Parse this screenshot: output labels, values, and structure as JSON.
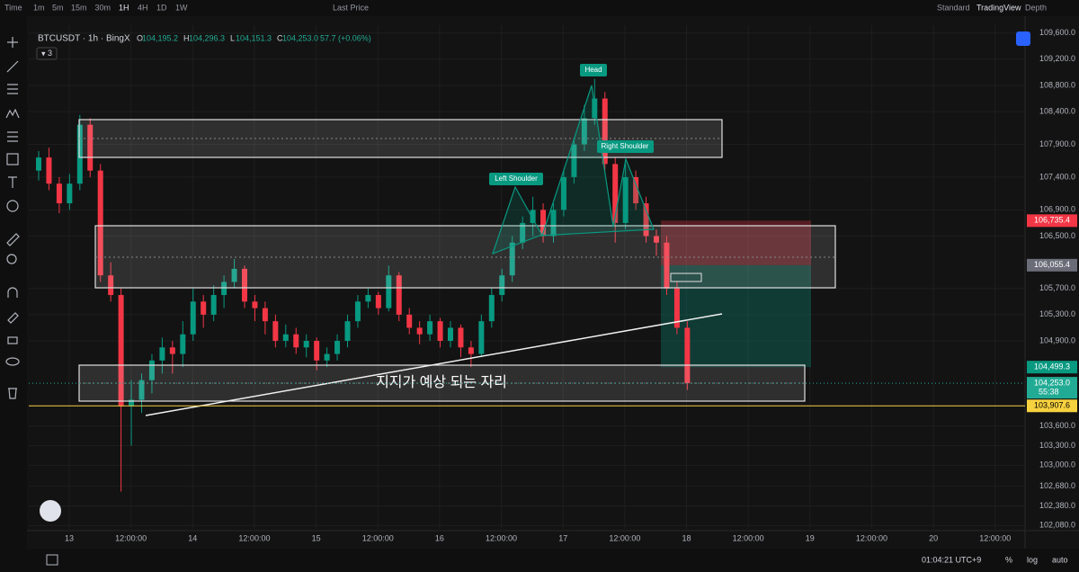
{
  "top_bar": {
    "items": [
      "Time",
      "1m",
      "5m",
      "15m",
      "30m",
      "1H",
      "4H",
      "1D",
      "1W"
    ],
    "price_mode": "Last Price",
    "right_items": [
      "Standard",
      "TradingView",
      "Depth"
    ]
  },
  "legend": {
    "symbol": "BTCUSDT · 1h · BingX",
    "ohlc": [
      {
        "k": "O",
        "v": "104,195.2"
      },
      {
        "k": "H",
        "v": "104,296.3"
      },
      {
        "k": "L",
        "v": "104,151.3"
      },
      {
        "k": "C",
        "v": "104,253.0"
      }
    ],
    "change": "57.7 (+0.06%)",
    "indicators": "3"
  },
  "annotations": {
    "head": "Head",
    "left_shoulder": "Left Shoulder",
    "right_shoulder": "Right Shoulder",
    "zone_note": "지지가 예상 되는 자리"
  },
  "bottom_bar": {
    "clock": "01:04:21 UTC+9",
    "percent": "%",
    "log": "log",
    "auto": "auto"
  },
  "chart_data": {
    "type": "candlestick",
    "up_color": "#089981",
    "down_color": "#f23645",
    "ylim": [
      102030,
      109720
    ],
    "yticks": [
      {
        "value": 109600,
        "label": "109,600.0"
      },
      {
        "value": 109200,
        "label": "109,200.0"
      },
      {
        "value": 108800,
        "label": "108,800.0"
      },
      {
        "value": 108400,
        "label": "108,400.0"
      },
      {
        "value": 107900,
        "label": "107,900.0"
      },
      {
        "value": 107400,
        "label": "107,400.0"
      },
      {
        "value": 106900,
        "label": "106,900.0"
      },
      {
        "value": 106500,
        "label": "106,500.0"
      },
      {
        "value": 105700,
        "label": "105,700.0"
      },
      {
        "value": 105300,
        "label": "105,300.0"
      },
      {
        "value": 104900,
        "label": "104,900.0"
      },
      {
        "value": 103600,
        "label": "103,600.0"
      },
      {
        "value": 103300,
        "label": "103,300.0"
      },
      {
        "value": 103000,
        "label": "103,000.0"
      },
      {
        "value": 102680,
        "label": "102,680.0"
      },
      {
        "value": 102380,
        "label": "102,380.0"
      },
      {
        "value": 102080,
        "label": "102,080.0"
      }
    ],
    "time_labels": [
      "13",
      "12:00:00",
      "14",
      "12:00:00",
      "15",
      "12:00:00",
      "16",
      "12:00:00",
      "17",
      "12:00:00",
      "18",
      "12:00:00",
      "19",
      "12:00:00",
      "20",
      "12:00:00"
    ],
    "price_labels": [
      {
        "value": 106735.4,
        "label": "106,735.4",
        "color": "#f23645"
      },
      {
        "value": 106055.4,
        "label": "106,055.4",
        "color": "#6a6d78"
      },
      {
        "value": 104499.3,
        "label": "104,499.3",
        "color": "#089981"
      },
      {
        "value": 104253.0,
        "label": "104,253.0",
        "color": "#22ab94"
      },
      {
        "value": 103907.6,
        "label": "103,907.6",
        "color": "#f7d23f"
      }
    ],
    "countdown": "55:38",
    "candles": [
      [
        107500,
        107800,
        107350,
        107700
      ],
      [
        107700,
        107850,
        107200,
        107300
      ],
      [
        107300,
        107400,
        106850,
        107000
      ],
      [
        107000,
        107450,
        106900,
        107300
      ],
      [
        107300,
        108350,
        107200,
        108200
      ],
      [
        108200,
        108300,
        107400,
        107500
      ],
      [
        107500,
        107600,
        105800,
        105900
      ],
      [
        105900,
        106100,
        105500,
        105600
      ],
      [
        105600,
        105700,
        102600,
        103900
      ],
      [
        103900,
        104300,
        103300,
        104000
      ],
      [
        104000,
        104400,
        103800,
        104300
      ],
      [
        104300,
        104700,
        104100,
        104600
      ],
      [
        104600,
        104950,
        104400,
        104800
      ],
      [
        104800,
        104900,
        104400,
        104700
      ],
      [
        104700,
        105200,
        104500,
        105000
      ],
      [
        105000,
        105700,
        104900,
        105500
      ],
      [
        105500,
        105600,
        105100,
        105300
      ],
      [
        105300,
        105750,
        105200,
        105600
      ],
      [
        105600,
        105900,
        105400,
        105800
      ],
      [
        105800,
        106150,
        105700,
        106000
      ],
      [
        106000,
        106050,
        105400,
        105500
      ],
      [
        105500,
        105600,
        105200,
        105400
      ],
      [
        105400,
        105500,
        105000,
        105200
      ],
      [
        105200,
        105300,
        104800,
        104900
      ],
      [
        104900,
        105150,
        104800,
        105000
      ],
      [
        105000,
        105100,
        104700,
        104800
      ],
      [
        104800,
        105000,
        104650,
        104900
      ],
      [
        104900,
        104950,
        104450,
        104600
      ],
      [
        104600,
        104800,
        104500,
        104700
      ],
      [
        104700,
        105000,
        104600,
        104900
      ],
      [
        104900,
        105300,
        104800,
        105200
      ],
      [
        105200,
        105600,
        105100,
        105500
      ],
      [
        105500,
        105700,
        105400,
        105600
      ],
      [
        105600,
        105650,
        105300,
        105400
      ],
      [
        105400,
        106050,
        105350,
        105900
      ],
      [
        105900,
        105950,
        105200,
        105300
      ],
      [
        105300,
        105400,
        105000,
        105100
      ],
      [
        105100,
        105200,
        104850,
        105000
      ],
      [
        105000,
        105300,
        104900,
        105200
      ],
      [
        105200,
        105250,
        104800,
        104900
      ],
      [
        104900,
        105200,
        104800,
        105100
      ],
      [
        105100,
        105150,
        104650,
        104800
      ],
      [
        104800,
        104900,
        104500,
        104700
      ],
      [
        104700,
        105300,
        104650,
        105200
      ],
      [
        105200,
        105700,
        105100,
        105600
      ],
      [
        105600,
        106000,
        105500,
        105900
      ],
      [
        105900,
        106500,
        105800,
        106400
      ],
      [
        106400,
        106800,
        106300,
        106700
      ],
      [
        106700,
        107100,
        106500,
        106900
      ],
      [
        106900,
        107000,
        106400,
        106500
      ],
      [
        106500,
        107000,
        106400,
        106900
      ],
      [
        106900,
        107500,
        106800,
        107400
      ],
      [
        107400,
        108000,
        107300,
        107900
      ],
      [
        107900,
        108500,
        107800,
        108300
      ],
      [
        108300,
        108900,
        108200,
        108600
      ],
      [
        108600,
        108700,
        107500,
        107600
      ],
      [
        107600,
        107700,
        106400,
        106700
      ],
      [
        106700,
        107600,
        106600,
        107400
      ],
      [
        107400,
        107500,
        106900,
        107000
      ],
      [
        107000,
        107100,
        106400,
        106500
      ],
      [
        106500,
        106600,
        106200,
        106400
      ],
      [
        106400,
        106500,
        105600,
        105700
      ],
      [
        105700,
        105800,
        105000,
        105100
      ],
      [
        105100,
        105200,
        104150,
        104253
      ]
    ]
  }
}
